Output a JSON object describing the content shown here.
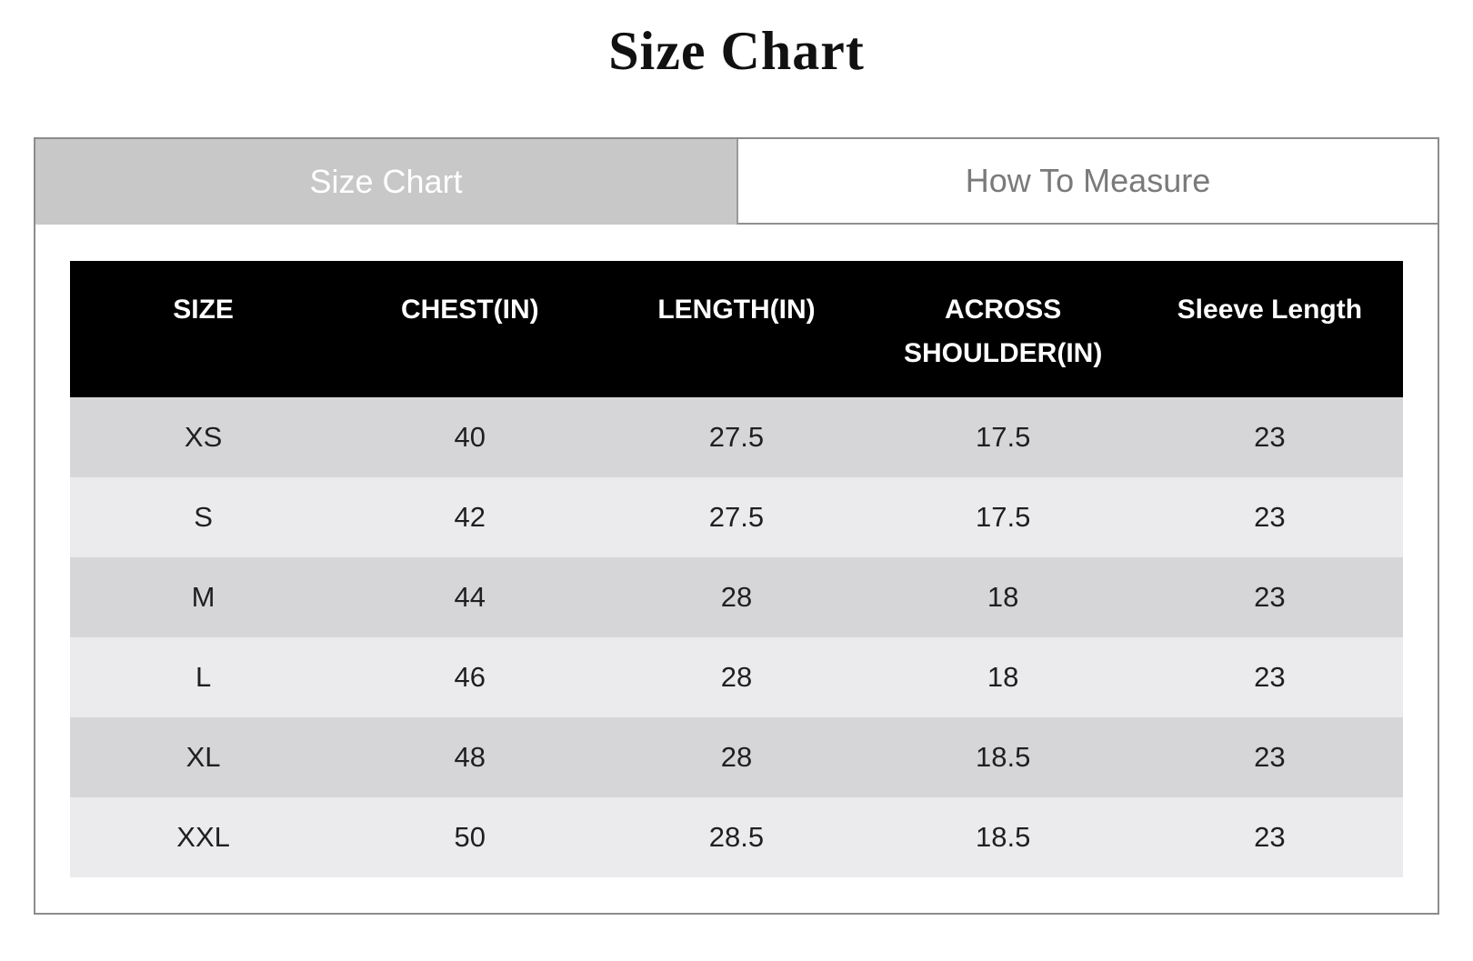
{
  "page_title": "Size Chart",
  "tabs": [
    {
      "label": "Size Chart",
      "active": true
    },
    {
      "label": "How To Measure",
      "active": false
    }
  ],
  "table": {
    "headers": [
      "SIZE",
      "CHEST(IN)",
      "LENGTH(IN)",
      "ACROSS SHOULDER(IN)",
      "Sleeve Length"
    ],
    "rows": [
      {
        "size": "XS",
        "chest": "40",
        "length": "27.5",
        "shoulder": "17.5",
        "sleeve": "23"
      },
      {
        "size": "S",
        "chest": "42",
        "length": "27.5",
        "shoulder": "17.5",
        "sleeve": "23"
      },
      {
        "size": "M",
        "chest": "44",
        "length": "28",
        "shoulder": "18",
        "sleeve": "23"
      },
      {
        "size": "L",
        "chest": "46",
        "length": "28",
        "shoulder": "18",
        "sleeve": "23"
      },
      {
        "size": "XL",
        "chest": "48",
        "length": "28",
        "shoulder": "18.5",
        "sleeve": "23"
      },
      {
        "size": "XXL",
        "chest": "50",
        "length": "28.5",
        "shoulder": "18.5",
        "sleeve": "23"
      }
    ]
  },
  "colors": {
    "active_tab_bg": "#c8c8c8",
    "active_tab_text": "#ffffff",
    "inactive_tab_text": "#7a7a7a",
    "header_bg": "#000000",
    "header_text": "#ffffff",
    "row_dark": "#d6d6d8",
    "row_light": "#ebebed",
    "card_border": "#8c8c8c"
  }
}
